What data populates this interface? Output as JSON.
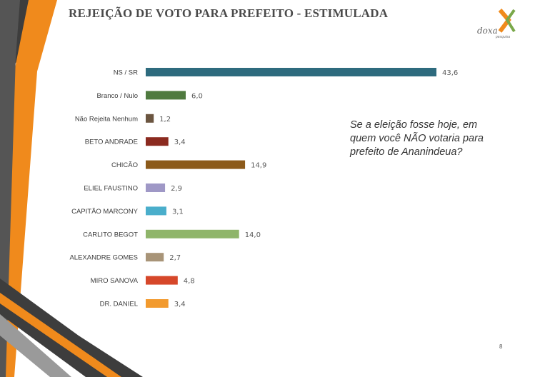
{
  "slide": {
    "title": "REJEIÇÃO DE VOTO PARA PREFEITO - ESTIMULADA",
    "question": "Se a eleição fosse hoje, em quem você NÃO votaria para prefeito de Ananindeua?",
    "page_number": "8",
    "logo_text": "doxa",
    "logo_subtext": "pesquisa"
  },
  "chart_data": {
    "type": "bar",
    "orientation": "horizontal",
    "title": "REJEIÇÃO DE VOTO PARA PREFEITO - ESTIMULADA",
    "xlim": [
      0,
      43.6
    ],
    "grid": false,
    "legend": "none",
    "categories": [
      "NS / SR",
      "Branco / Nulo",
      "Não Rejeita Nenhum",
      "BETO ANDRADE",
      "CHICÃO",
      "ELIEL FAUSTINO",
      "CAPITÃO MARCONY",
      "CARLITO BEGOT",
      "ALEXANDRE GOMES",
      "MIRO SANOVA",
      "DR. DANIEL"
    ],
    "values": [
      43.6,
      6.0,
      1.2,
      3.4,
      14.9,
      2.9,
      3.1,
      14.0,
      2.7,
      4.8,
      3.4
    ],
    "value_labels": [
      "43,6",
      "6,0",
      "1,2",
      "3,4",
      "14,9",
      "2,9",
      "3,1",
      "14,0",
      "2,7",
      "4,8",
      "3,4"
    ],
    "colors": [
      "#2e6b7e",
      "#4f7a3f",
      "#6b5540",
      "#8b2a1f",
      "#8c5a1a",
      "#9f98c6",
      "#4aaecb",
      "#8fb56a",
      "#a89478",
      "#d6472a",
      "#f29a2e"
    ]
  }
}
